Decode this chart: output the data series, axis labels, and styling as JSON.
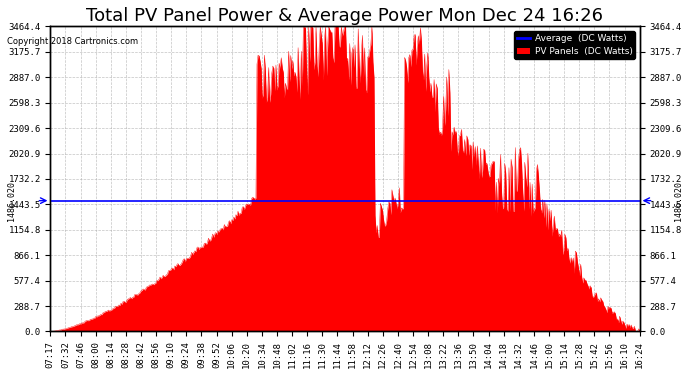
{
  "title": "Total PV Panel Power & Average Power Mon Dec 24 16:26",
  "copyright": "Copyright 2018 Cartronics.com",
  "legend_labels": [
    "Average  (DC Watts)",
    "PV Panels  (DC Watts)"
  ],
  "legend_colors": [
    "#0000ff",
    "#ff0000"
  ],
  "avg_value": 1486.02,
  "avg_label": "1486.020",
  "ymax": 3464.4,
  "ymin": 0.0,
  "yticks": [
    0.0,
    288.7,
    577.4,
    866.1,
    1154.8,
    1443.5,
    1732.2,
    2020.9,
    2309.6,
    2598.3,
    2887.0,
    3175.7,
    3464.4
  ],
  "fill_color": "#ff0000",
  "avg_line_color": "#0000ff",
  "background_color": "#ffffff",
  "grid_color": "#aaaaaa",
  "title_fontsize": 13,
  "tick_label_fontsize": 6.5,
  "x_tick_labels": [
    "07:17",
    "07:32",
    "07:46",
    "08:00",
    "08:14",
    "08:28",
    "08:42",
    "08:56",
    "09:10",
    "09:24",
    "09:38",
    "09:52",
    "10:06",
    "10:20",
    "10:34",
    "10:48",
    "11:02",
    "11:16",
    "11:30",
    "11:44",
    "11:58",
    "12:12",
    "12:26",
    "12:40",
    "12:54",
    "13:08",
    "13:22",
    "13:36",
    "13:50",
    "14:04",
    "14:18",
    "14:32",
    "14:46",
    "15:00",
    "15:14",
    "15:28",
    "15:42",
    "15:56",
    "16:10",
    "16:24"
  ]
}
